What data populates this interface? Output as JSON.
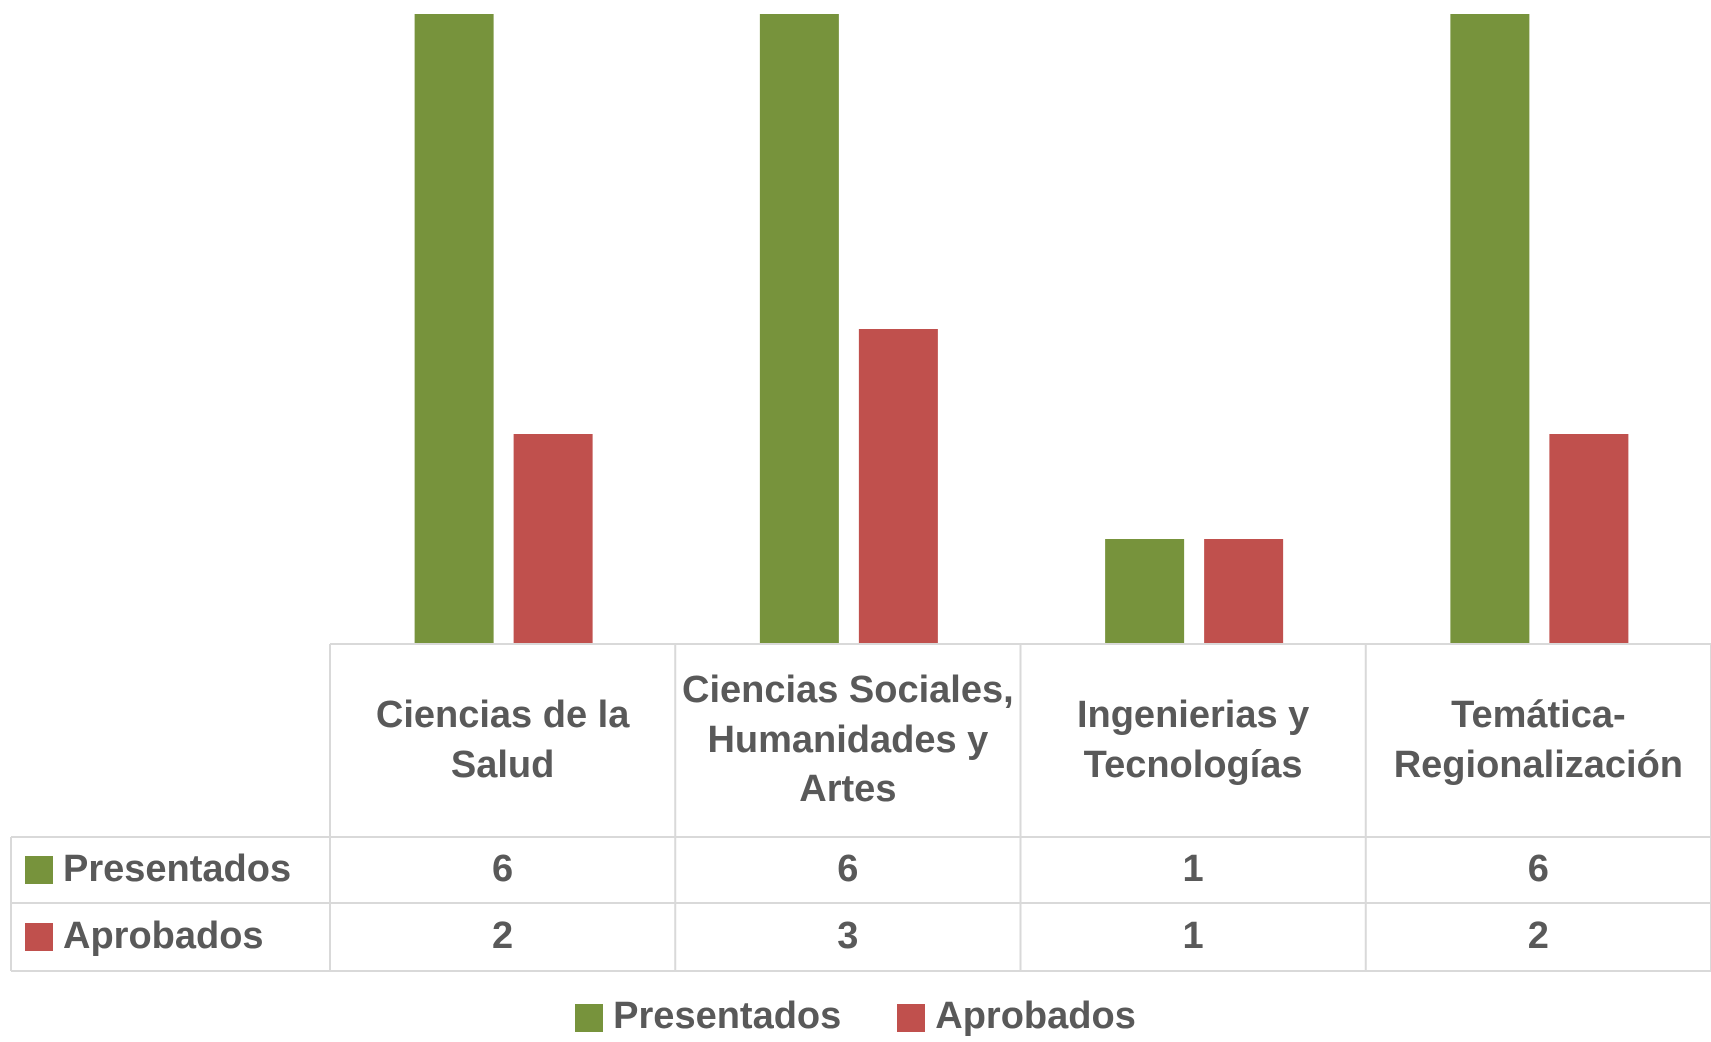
{
  "chart_data": {
    "type": "bar",
    "categories": [
      "Ciencias de la Salud",
      "Ciencias Sociales, Humanidades y Artes",
      "Ingenierias y Tecnologías",
      "Temática-Regionalización"
    ],
    "series": [
      {
        "name": "Presentados",
        "color": "#77933c",
        "values": [
          6,
          6,
          1,
          6
        ]
      },
      {
        "name": "Aprobados",
        "color": "#c0504d",
        "values": [
          2,
          3,
          1,
          2
        ]
      }
    ],
    "legend": "bottom"
  }
}
